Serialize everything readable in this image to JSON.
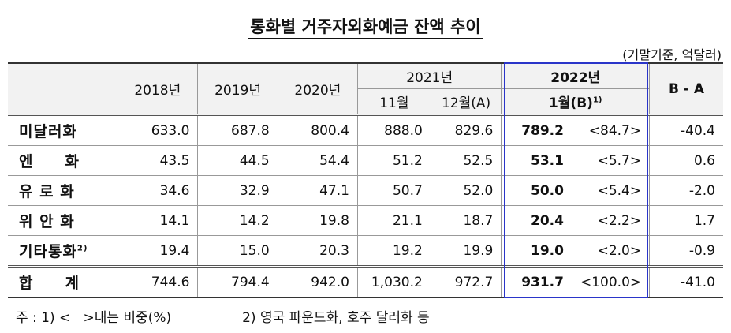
{
  "header": {
    "title": "통화별 거주자외화예금 잔액 추이",
    "unit": "(기말기준, 억달러)"
  },
  "table": {
    "head": {
      "corner": "",
      "years": [
        "2018년",
        "2019년",
        "2020년"
      ],
      "y2021": "2021년",
      "months2021": [
        "11월",
        "12월(A)"
      ],
      "y2022": "2022년",
      "month2022": "1월(B)",
      "month2022_note": "1)",
      "diff": "B - A"
    },
    "rows": [
      {
        "label": "미달러화",
        "note": "",
        "cells": [
          "633.0",
          "687.8",
          "800.4",
          "888.0",
          "829.6",
          "789.2",
          "<84.7>",
          "-40.4"
        ]
      },
      {
        "label": "엔　　화",
        "note": "",
        "cells": [
          "43.5",
          "44.5",
          "54.4",
          "51.2",
          "52.5",
          "53.1",
          "<5.7>",
          "0.6"
        ]
      },
      {
        "label": "유 로 화",
        "note": "",
        "cells": [
          "34.6",
          "32.9",
          "47.1",
          "50.7",
          "52.0",
          "50.0",
          "<5.4>",
          "-2.0"
        ]
      },
      {
        "label": "위 안 화",
        "note": "",
        "cells": [
          "14.1",
          "14.2",
          "19.8",
          "21.1",
          "18.7",
          "20.4",
          "<2.2>",
          "1.7"
        ]
      },
      {
        "label": "기타통화",
        "note": "2)",
        "cells": [
          "19.4",
          "15.0",
          "20.3",
          "19.2",
          "19.9",
          "19.0",
          "<2.0>",
          "-0.9"
        ]
      },
      {
        "label": "합　　계",
        "note": "",
        "cells": [
          "744.6",
          "794.4",
          "942.0",
          "1,030.2",
          "972.7",
          "931.7",
          "<100.0>",
          "-41.0"
        ]
      }
    ]
  },
  "footnotes": [
    "주 : 1) <   >내는 비중(%)",
    "2) 영국 파운드화, 호주 달러화 등"
  ]
}
